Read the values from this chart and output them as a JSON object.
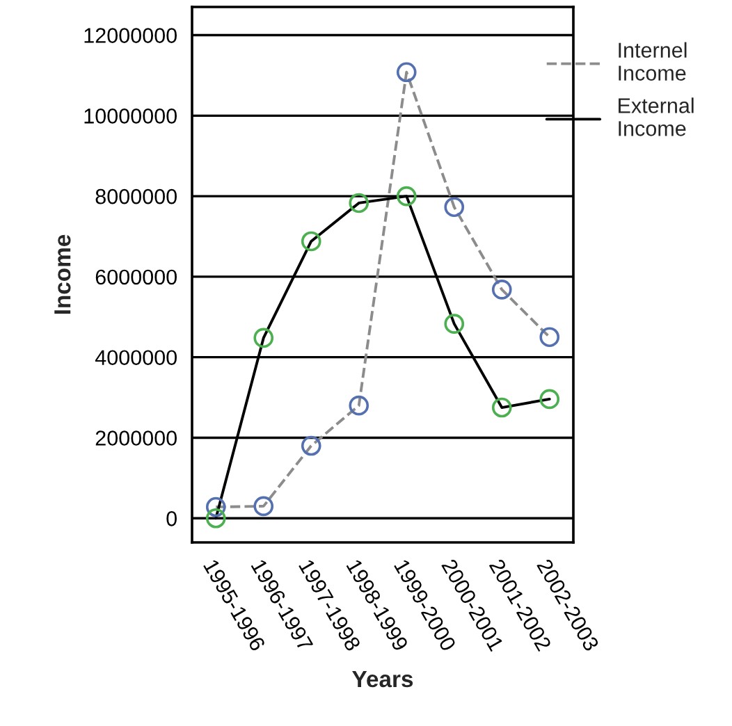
{
  "chart_data": {
    "type": "line",
    "xlabel": "Years",
    "ylabel": "Income",
    "categories": [
      "1995-1996",
      "1996-1997",
      "1997-1998",
      "1998-1999",
      "1999-2000",
      "2000-2001",
      "2001-2002",
      "2002-2003"
    ],
    "series": [
      {
        "name": "Internel Income",
        "color": "#8c8c8c",
        "colors": [
          "#5470b0",
          "#5470b0",
          "#5470b0",
          "#5470b0",
          "#5470b0",
          "#5470b0",
          "#5470b0",
          "#5470b0"
        ],
        "line_style": "dashed",
        "values": [
          280000,
          300000,
          1800000,
          2800000,
          11080000,
          7730000,
          5680000,
          4500000
        ]
      },
      {
        "name": "External Income",
        "color": "#000000",
        "colors": [
          "#4caf50",
          "#4caf50",
          "#4caf50",
          "#4caf50",
          "#4caf50",
          "#4caf50",
          "#4caf50",
          "#4caf50"
        ],
        "line_style": "solid",
        "values": [
          0,
          4480000,
          6880000,
          7830000,
          8000000,
          4830000,
          2750000,
          2960000
        ]
      }
    ],
    "ylim": [
      -600000,
      12700000
    ],
    "yticks": [
      0,
      2000000,
      4000000,
      6000000,
      8000000,
      10000000,
      12000000
    ],
    "grid": "y",
    "legend": "top right",
    "marker": "circle"
  }
}
